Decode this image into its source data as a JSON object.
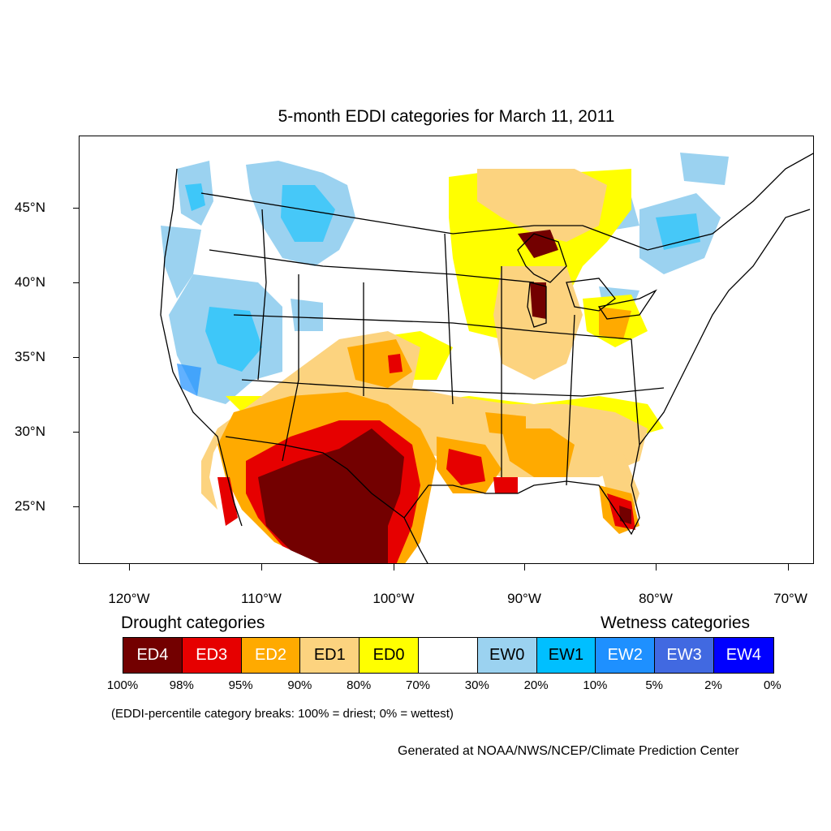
{
  "title": "5-month EDDI categories for March 11, 2011",
  "lat_labels": [
    "45°N",
    "40°N",
    "35°N",
    "30°N",
    "25°N"
  ],
  "lon_labels": [
    "120°W",
    "110°W",
    "100°W",
    "90°W",
    "80°W",
    "70°W"
  ],
  "legend": {
    "drought_heading": "Drought categories",
    "wetness_heading": "Wetness categories",
    "categories": [
      {
        "label": "ED4",
        "color": "#730000",
        "text_color": "#ffffff"
      },
      {
        "label": "ED3",
        "color": "#e60000",
        "text_color": "#ffffff"
      },
      {
        "label": "ED2",
        "color": "#ffaa00",
        "text_color": "#ffffff"
      },
      {
        "label": "ED1",
        "color": "#fcd37f",
        "text_color": "#000000"
      },
      {
        "label": "ED0",
        "color": "#ffff00",
        "text_color": "#000000"
      },
      {
        "label": "",
        "color": "#ffffff",
        "text_color": "#000000"
      },
      {
        "label": "EW0",
        "color": "#9bd2f0",
        "text_color": "#000000"
      },
      {
        "label": "EW1",
        "color": "#00bfff",
        "text_color": "#000000"
      },
      {
        "label": "EW2",
        "color": "#1e90ff",
        "text_color": "#ffffff"
      },
      {
        "label": "EW3",
        "color": "#4169e1",
        "text_color": "#ffffff"
      },
      {
        "label": "EW4",
        "color": "#0000ff",
        "text_color": "#ffffff"
      }
    ],
    "breaks": [
      "100%",
      "98%",
      "95%",
      "90%",
      "80%",
      "70%",
      "30%",
      "20%",
      "10%",
      "5%",
      "2%",
      "0%"
    ]
  },
  "note": "(EDDI-percentile category breaks: 100% = driest; 0% = wettest)",
  "credit": "Generated at NOAA/NWS/NCEP/Climate Prediction Center"
}
